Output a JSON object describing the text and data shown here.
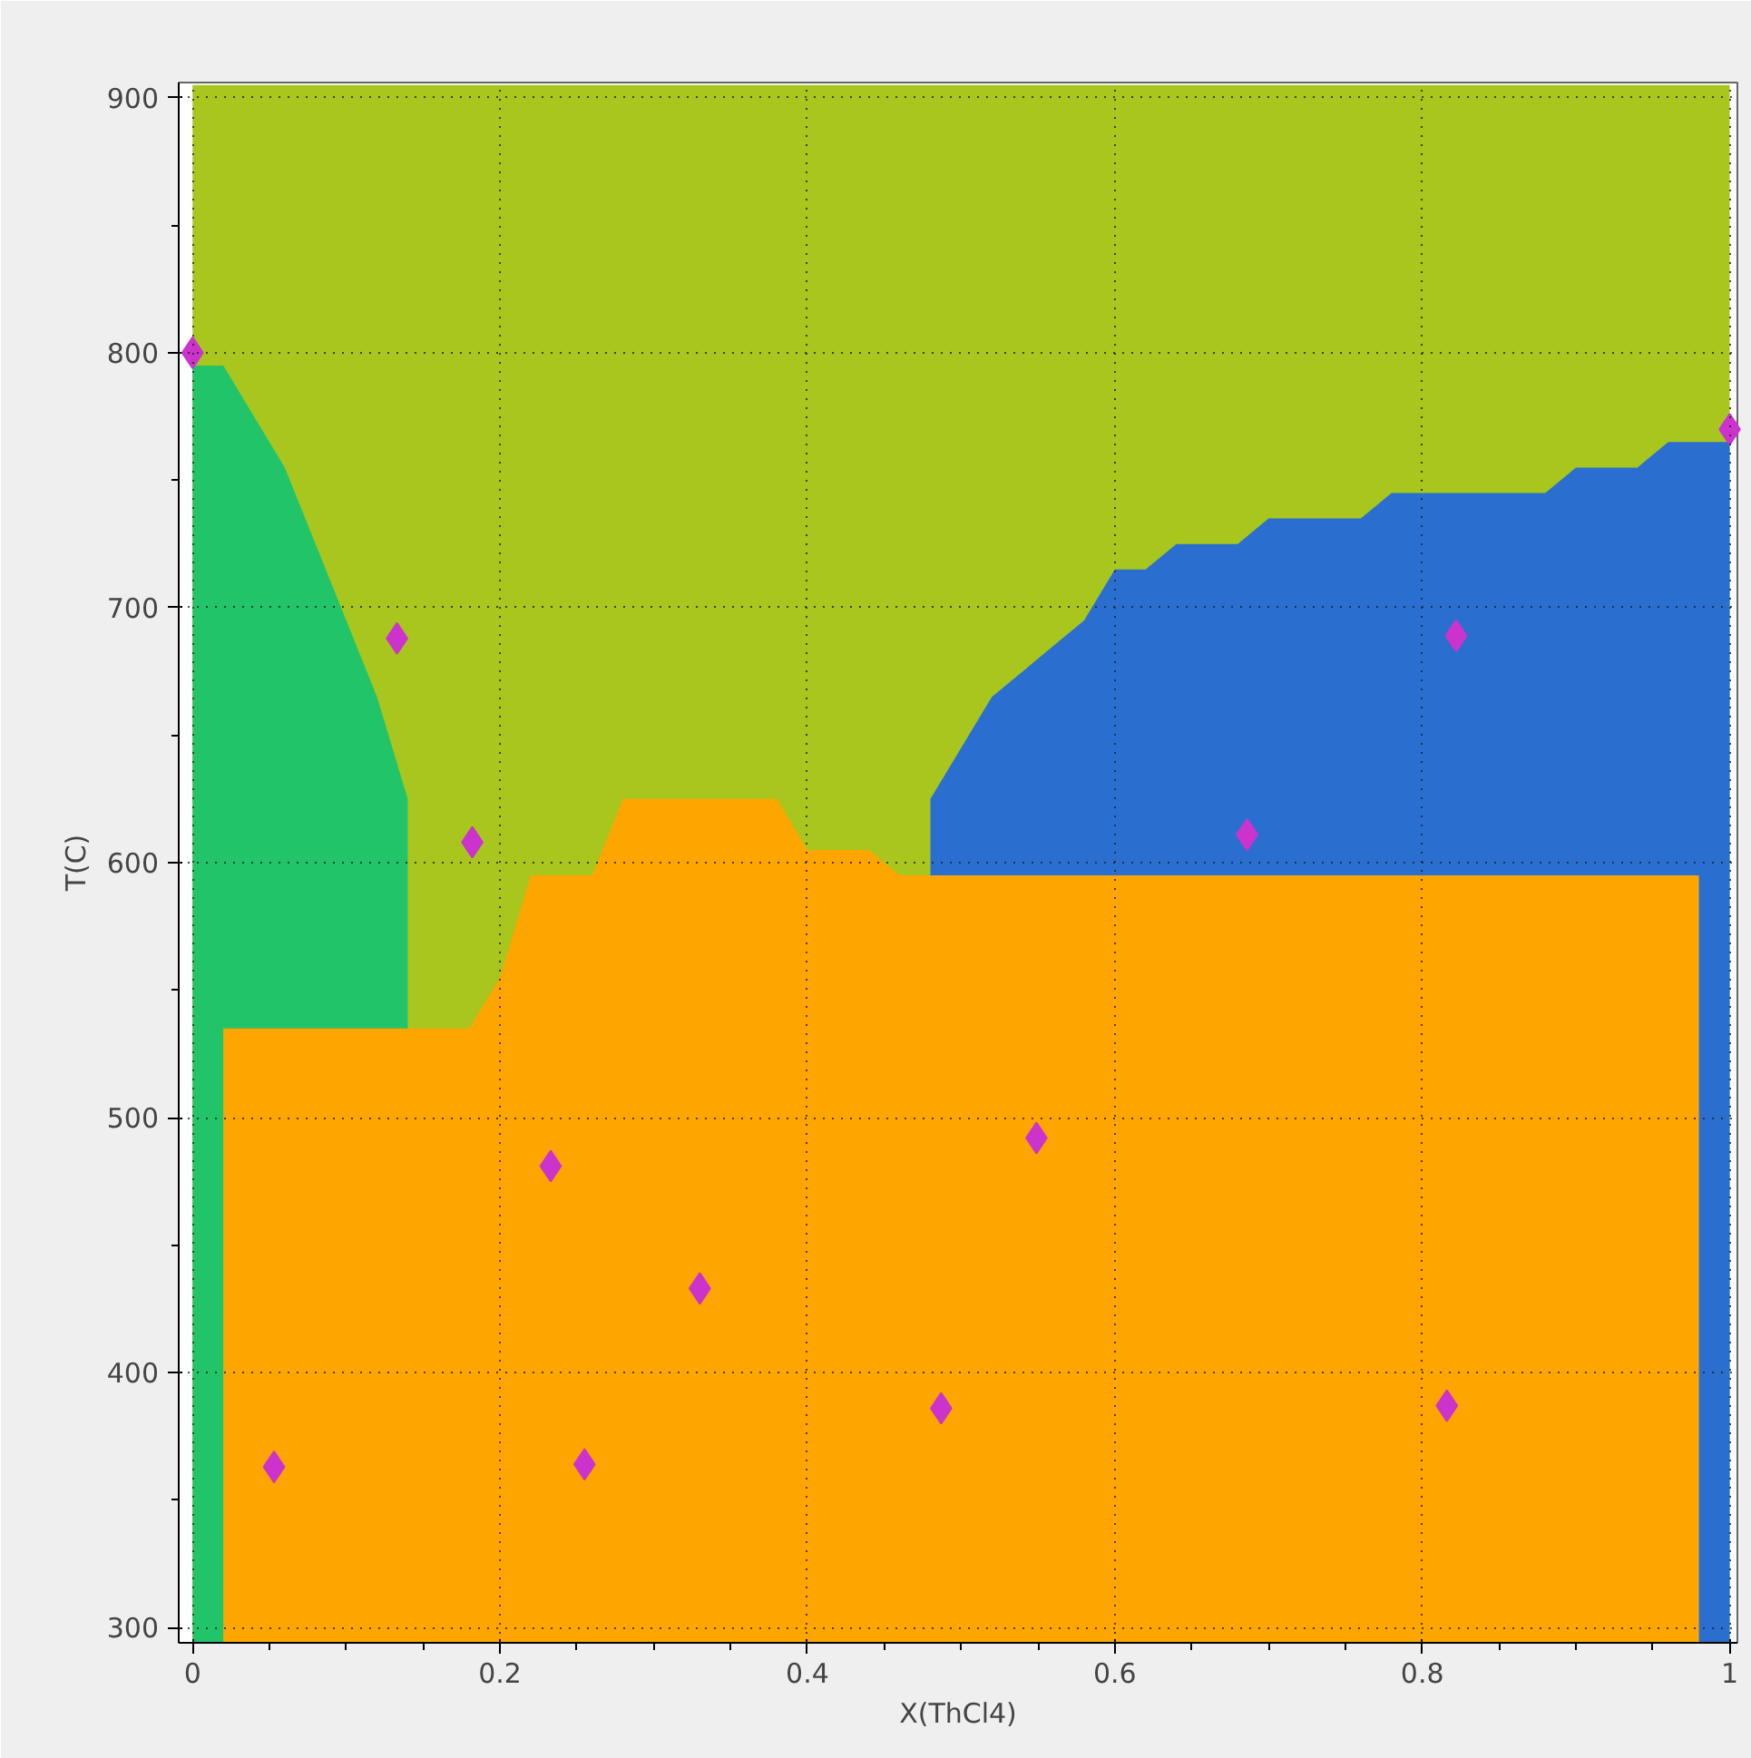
{
  "chart_data": {
    "type": "area",
    "xlabel": "X(ThCl4)",
    "ylabel": "T(C)",
    "x": [
      0,
      0.02,
      0.04,
      0.06,
      0.08,
      0.1,
      0.12,
      0.14,
      0.16,
      0.18,
      0.2,
      0.22,
      0.24,
      0.26,
      0.28,
      0.3,
      0.32,
      0.34,
      0.36,
      0.38,
      0.4,
      0.42,
      0.44,
      0.46,
      0.48,
      0.5,
      0.52,
      0.54,
      0.56,
      0.58,
      0.6,
      0.62,
      0.64,
      0.66,
      0.68,
      0.7,
      0.72,
      0.74,
      0.76,
      0.78,
      0.8,
      0.82,
      0.84,
      0.86,
      0.88,
      0.9,
      0.92,
      0.94,
      0.96,
      0.98,
      1.0
    ],
    "series": [
      {
        "color": "#a8c61e",
        "values": [
          905,
          905,
          905,
          905,
          905,
          905,
          905,
          905,
          905,
          905,
          905,
          905,
          905,
          905,
          905,
          905,
          905,
          905,
          905,
          905,
          905,
          905,
          905,
          905,
          905,
          905,
          905,
          905,
          905,
          905,
          905,
          905,
          905,
          905,
          905,
          905,
          905,
          905,
          905,
          905,
          905,
          905,
          905,
          905,
          905,
          905,
          905,
          905,
          905,
          905,
          905
        ]
      },
      {
        "color": "#2a6fcf",
        "values": [
          null,
          null,
          null,
          null,
          null,
          null,
          null,
          null,
          null,
          null,
          null,
          null,
          null,
          null,
          null,
          null,
          null,
          null,
          null,
          null,
          null,
          null,
          null,
          null,
          625,
          645,
          665,
          675,
          685,
          695,
          715,
          715,
          725,
          725,
          725,
          735,
          735,
          735,
          735,
          745,
          745,
          745,
          745,
          745,
          745,
          755,
          755,
          755,
          765,
          765,
          765
        ]
      },
      {
        "color": "#22c46a",
        "values": [
          795,
          795,
          775,
          755,
          725,
          695,
          665,
          625,
          null,
          null,
          null,
          null,
          null,
          null,
          null,
          null,
          null,
          null,
          null,
          null,
          null,
          null,
          null,
          null,
          null,
          null,
          null,
          null,
          null,
          null,
          null,
          null,
          null,
          null,
          null,
          null,
          null,
          null,
          null,
          null,
          null,
          null,
          null,
          null,
          null,
          null,
          null,
          null,
          null,
          null,
          null
        ]
      },
      {
        "color": "#ffa500",
        "values": [
          null,
          535,
          535,
          535,
          535,
          535,
          535,
          535,
          535,
          535,
          555,
          595,
          595,
          595,
          625,
          625,
          625,
          625,
          625,
          625,
          605,
          605,
          605,
          595,
          595,
          595,
          595,
          595,
          595,
          595,
          595,
          595,
          595,
          595,
          595,
          595,
          595,
          595,
          595,
          595,
          595,
          595,
          595,
          595,
          595,
          595,
          595,
          595,
          595,
          595,
          null
        ]
      },
      {
        "type": "scatter",
        "color": "#cc33cc",
        "marker": "diamond",
        "x": [
          0,
          0.053,
          0.133,
          0.182,
          0.233,
          0.255,
          0.33,
          0.487,
          0.549,
          0.686,
          0.816,
          0.822,
          1.0
        ],
        "values": [
          800,
          363,
          688,
          608,
          481,
          364,
          433,
          386,
          492,
          611,
          387,
          689,
          770
        ]
      }
    ],
    "xlim": [
      -0.009,
      1.005
    ],
    "ylim": [
      294,
      906
    ],
    "xticks": [
      {
        "value": 0,
        "label": "0"
      },
      0.2,
      0.4,
      0.6,
      0.8,
      {
        "value": 1.0,
        "label": "1"
      }
    ],
    "yticks": [
      300,
      400,
      500,
      600,
      700,
      800,
      900
    ],
    "grid": true,
    "line_style": "dotted"
  }
}
